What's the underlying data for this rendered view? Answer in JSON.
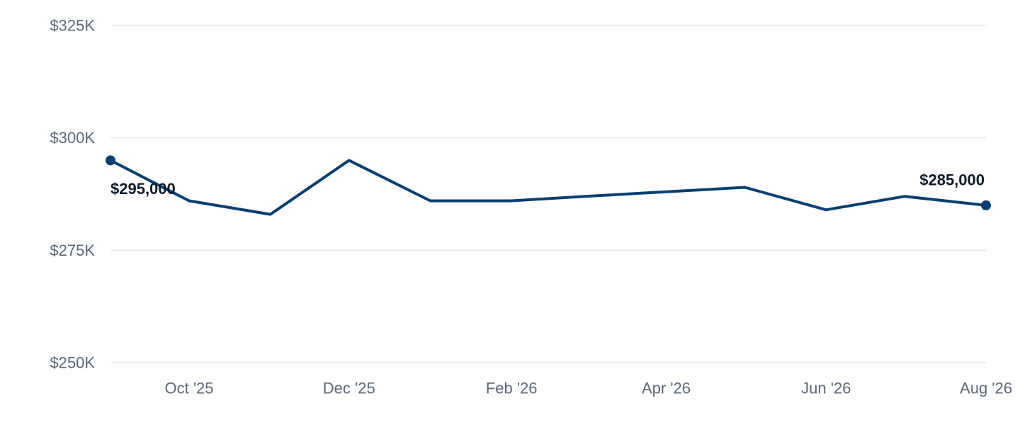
{
  "chart_data": {
    "type": "line",
    "x": [
      "2025-09-15",
      "2025-10-15",
      "2025-11-15",
      "2025-12-15",
      "2026-01-15",
      "2026-02-15",
      "2026-03-15",
      "2026-04-15",
      "2026-05-15",
      "2026-06-15",
      "2026-07-15",
      "2026-08-15"
    ],
    "series": [
      {
        "values": [
          295000,
          286000,
          283000,
          295000,
          286000,
          286000,
          287000,
          288000,
          289000,
          284000,
          287000,
          285000
        ],
        "color": "#073f73"
      }
    ],
    "y_ticks": [
      {
        "value": 250000,
        "label": "$250K"
      },
      {
        "value": 275000,
        "label": "$275K"
      },
      {
        "value": 300000,
        "label": "$300K"
      },
      {
        "value": 325000,
        "label": "$325K"
      }
    ],
    "x_ticks": [
      {
        "value": "2025-10-15",
        "label": "Oct '25"
      },
      {
        "value": "2025-12-15",
        "label": "Dec '25"
      },
      {
        "value": "2026-02-15",
        "label": "Feb '26"
      },
      {
        "value": "2026-04-15",
        "label": "Apr '26"
      },
      {
        "value": "2026-06-15",
        "label": "Jun '26"
      },
      {
        "value": "2026-08-15",
        "label": "Aug '26"
      }
    ],
    "ylim": [
      250000,
      325000
    ],
    "grid": true,
    "legend": "none",
    "annotations": [
      {
        "x": "2025-09-15",
        "y": 295000,
        "label": "$295,000"
      },
      {
        "x": "2026-08-15",
        "y": 285000,
        "label": "$285,000"
      }
    ]
  }
}
